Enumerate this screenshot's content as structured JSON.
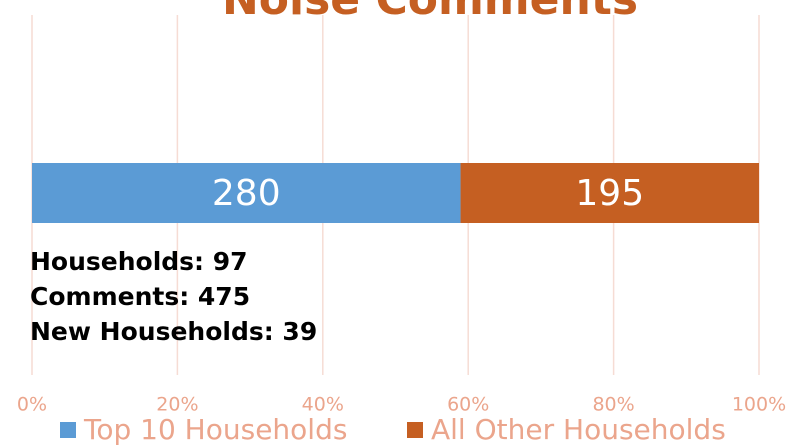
{
  "chart_data": {
    "type": "bar",
    "orientation": "horizontal",
    "stacking": "percent",
    "title": "Noise Comments",
    "series": [
      {
        "name": "Top 10 Households",
        "color": "#5b9bd5",
        "values": [
          280
        ]
      },
      {
        "name": "All Other Households",
        "color": "#c55f22",
        "values": [
          195
        ]
      }
    ],
    "xlim": [
      0,
      100
    ],
    "xticks": [
      {
        "value": 0,
        "label": "0%"
      },
      {
        "value": 20,
        "label": "20%"
      },
      {
        "value": 40,
        "label": "40%"
      },
      {
        "value": 60,
        "label": "60%"
      },
      {
        "value": 80,
        "label": "80%"
      },
      {
        "value": 100,
        "label": "100%"
      }
    ],
    "grid": true,
    "legend": "bottom",
    "annotations": [
      "Households: 97",
      "Comments: 475",
      "New Households: 39"
    ]
  }
}
